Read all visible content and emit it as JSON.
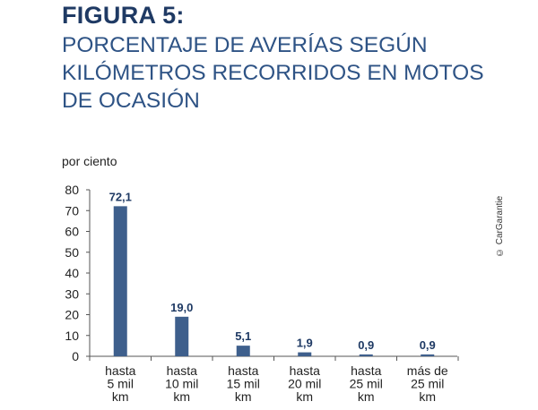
{
  "figure": {
    "label": "FIGURA 5:",
    "title_lines": [
      "PORCENTAJE DE AVERÍAS SEGÚN",
      "KILÓMETROS RECORRIDOS EN MOTOS",
      "DE OCASIÓN"
    ],
    "credit": "© CarGarantie"
  },
  "chart_data": {
    "type": "bar",
    "title": "PORCENTAJE DE AVERÍAS SEGÚN KILÓMETROS RECORRIDOS EN MOTOS DE OCASIÓN",
    "ylabel": "por ciento",
    "xlabel": "",
    "ylim": [
      0,
      80
    ],
    "yticks": [
      0,
      10,
      20,
      30,
      40,
      50,
      60,
      70,
      80
    ],
    "grid": false,
    "bar_color": "#3e5f8c",
    "categories": [
      [
        "hasta",
        "5 mil",
        "km"
      ],
      [
        "hasta",
        "10 mil",
        "km"
      ],
      [
        "hasta",
        "15 mil",
        "km"
      ],
      [
        "hasta",
        "20 mil",
        "km"
      ],
      [
        "hasta",
        "25 mil",
        "km"
      ],
      [
        "más de",
        "25 mil",
        "km"
      ]
    ],
    "values": [
      72.1,
      19.0,
      5.1,
      1.9,
      0.9,
      0.9
    ],
    "value_labels": [
      "72,1",
      "19,0",
      "5,1",
      "1,9",
      "0,9",
      "0,9"
    ]
  }
}
